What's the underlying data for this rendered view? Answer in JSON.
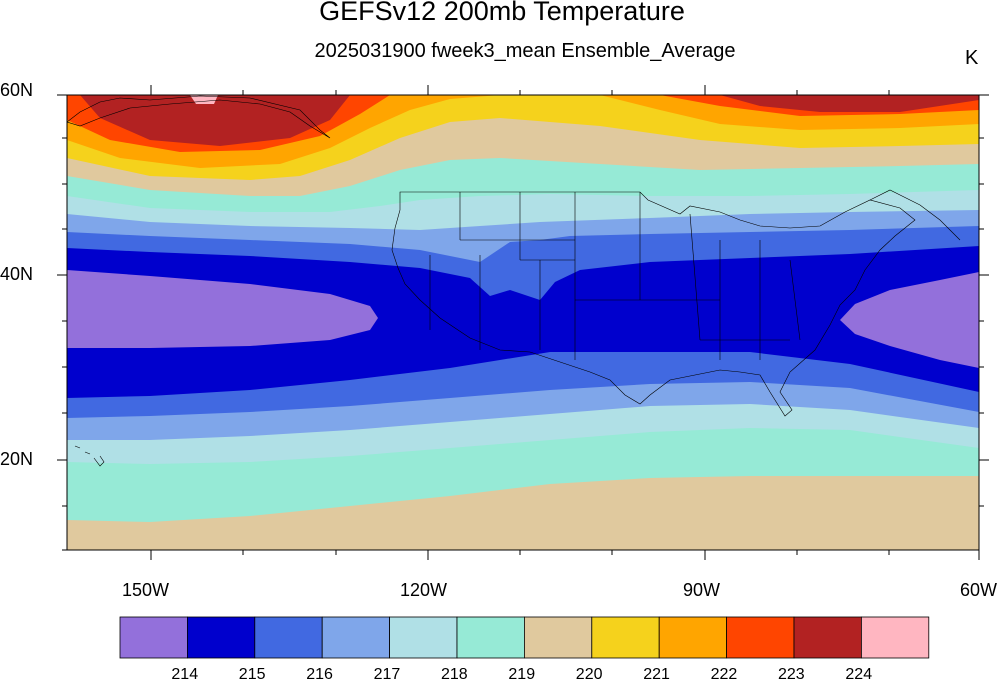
{
  "title": "GEFSv12 200mb Temperature",
  "subtitle": "2025031900 fweek3_mean Ensemble_Average",
  "units": "K",
  "lat_labels": [
    "60N",
    "40N",
    "20N"
  ],
  "lon_labels": [
    "150W",
    "120W",
    "90W",
    "60W"
  ],
  "colorbar": {
    "labels": [
      "214",
      "215",
      "216",
      "217",
      "218",
      "219",
      "220",
      "221",
      "222",
      "223",
      "224"
    ],
    "colors": [
      "#9370db",
      "#0000cd",
      "#4169e1",
      "#7fa6ea",
      "#b0e0e6",
      "#96ead6",
      "#e0c99e",
      "#f5d21c",
      "#ffa500",
      "#ff4500",
      "#b22222",
      "#ffb6c1"
    ]
  }
}
